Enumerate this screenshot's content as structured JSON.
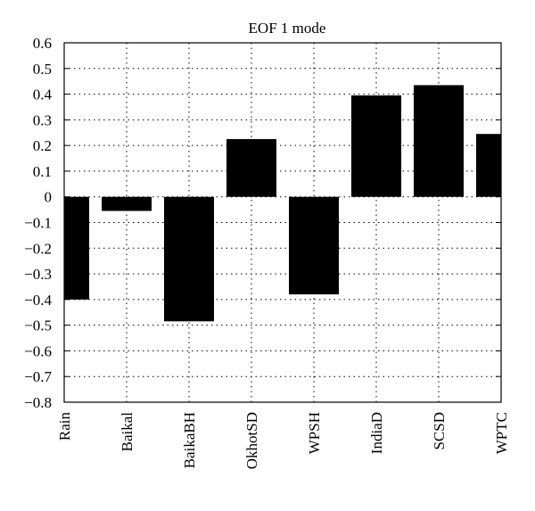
{
  "chart_data": {
    "type": "bar",
    "title": "EOF 1 mode",
    "xlabel": "",
    "ylabel": "",
    "categories": [
      "Rain",
      "Baikal",
      "BaikaBH",
      "OkhotSD",
      "WPSH",
      "IndiaD",
      "SCSD",
      "WPTC"
    ],
    "values": [
      -0.4,
      -0.055,
      -0.485,
      0.225,
      -0.38,
      0.395,
      0.435,
      0.245
    ],
    "ylim": [
      -0.8,
      0.6
    ],
    "yticks": [
      0.6,
      0.5,
      0.4,
      0.3,
      0.2,
      0.1,
      0,
      -0.1,
      -0.2,
      -0.3,
      -0.4,
      -0.5,
      -0.6,
      -0.7,
      -0.8
    ],
    "ytick_labels": [
      "0.6",
      "0.5",
      "0.4",
      "0.3",
      "0.2",
      "0.1",
      "0",
      "−0.1",
      "−0.2",
      "−0.3",
      "−0.4",
      "−0.5",
      "−0.6",
      "−0.7",
      "−0.8"
    ],
    "grid": true,
    "bar_color": "#000000"
  }
}
